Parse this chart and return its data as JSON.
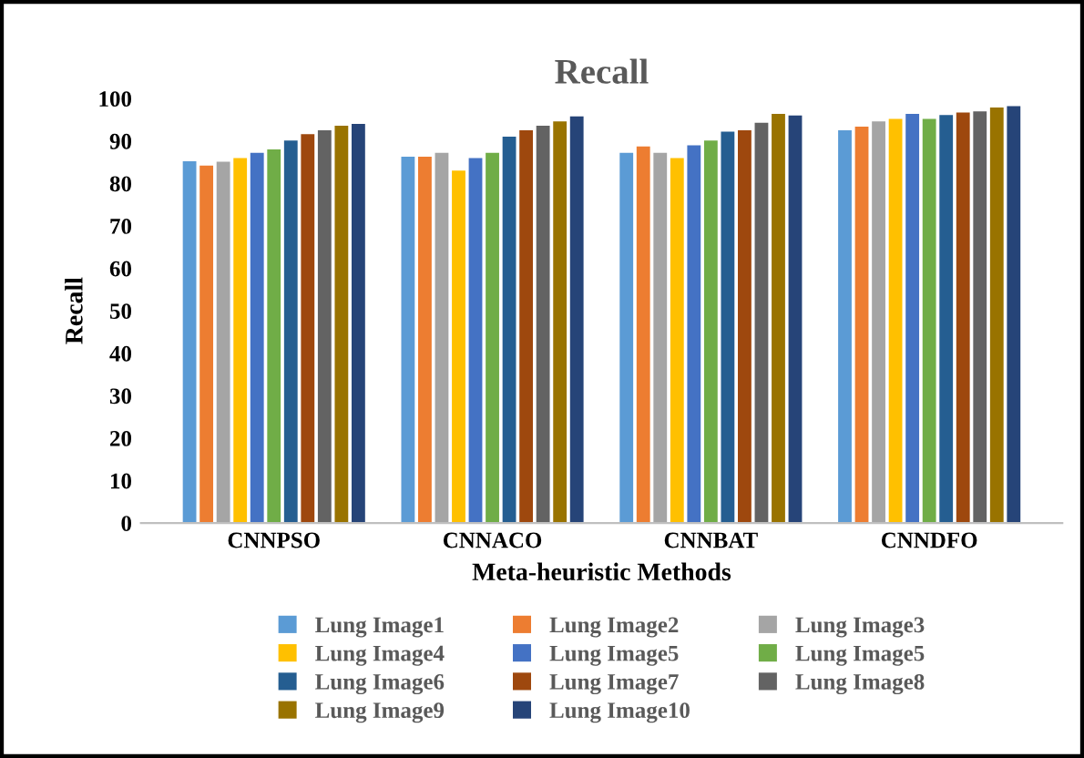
{
  "chart_data": {
    "type": "bar",
    "title": "Recall",
    "xlabel": "Meta-heuristic Methods",
    "ylabel": "Recall",
    "categories": [
      "CNNPSO",
      "CNNACO",
      "CNNBAT",
      "CNNDFO"
    ],
    "series": [
      {
        "name": "Lung Image1",
        "color": "#5b9bd5",
        "values": [
          85.2,
          86.3,
          87.2,
          92.5
        ]
      },
      {
        "name": "Lung Image2",
        "color": "#ed7d31",
        "values": [
          84.2,
          86.3,
          88.7,
          93.4
        ]
      },
      {
        "name": "Lung Image3",
        "color": "#a5a5a5",
        "values": [
          85.1,
          87.2,
          87.2,
          94.6
        ]
      },
      {
        "name": "Lung Image4",
        "color": "#ffc000",
        "values": [
          86,
          83,
          86,
          95.2
        ]
      },
      {
        "name": "Lung Image5",
        "color": "#4472c4",
        "values": [
          87.2,
          86,
          89,
          96.4
        ]
      },
      {
        "name": "Lung Image5",
        "color": "#70ad47",
        "values": [
          88,
          87.2,
          90.1,
          95.2
        ]
      },
      {
        "name": "Lung Image6",
        "color": "#255e91",
        "values": [
          90.1,
          91,
          92.2,
          96.1
        ]
      },
      {
        "name": "Lung Image7",
        "color": "#9e480e",
        "values": [
          91.6,
          92.5,
          92.5,
          96.7
        ]
      },
      {
        "name": "Lung Image8",
        "color": "#636363",
        "values": [
          92.5,
          93.6,
          94.3,
          97
        ]
      },
      {
        "name": "Lung Image9",
        "color": "#997300",
        "values": [
          93.6,
          94.6,
          96.4,
          97.9
        ]
      },
      {
        "name": "Lung Image10",
        "color": "#264478",
        "values": [
          94,
          95.8,
          96,
          98.2
        ]
      }
    ],
    "ylim": [
      0,
      100
    ],
    "yticks": [
      0,
      10,
      20,
      30,
      40,
      50,
      60,
      70,
      80,
      90,
      100
    ],
    "grid": false,
    "legend": "bottom"
  }
}
